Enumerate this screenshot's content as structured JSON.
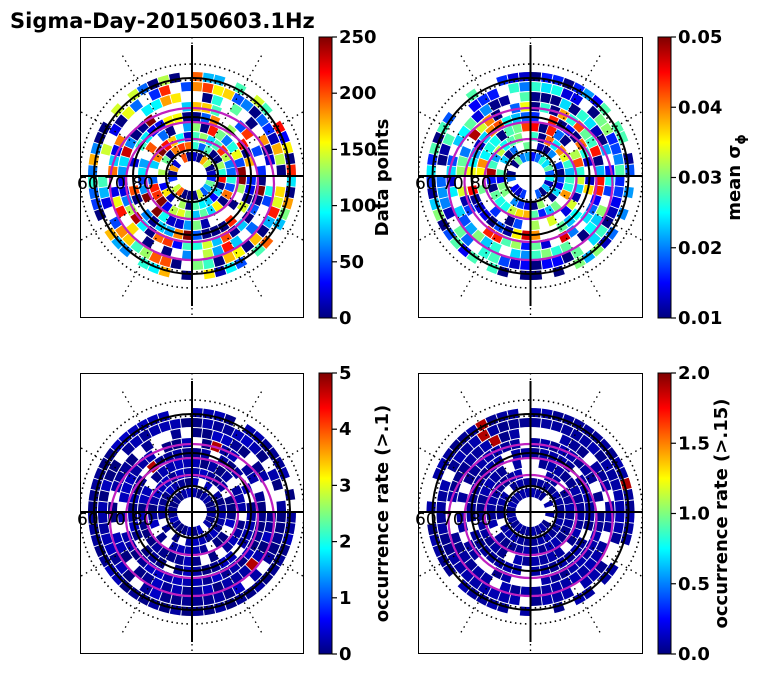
{
  "figure": {
    "title": "Sigma-Day-20150603.1Hz"
  },
  "chart_data": [
    {
      "type": "heatmap",
      "projection": "polar",
      "ring_labels": [
        "60",
        "70",
        "80"
      ],
      "colorbar": {
        "label": "Data points",
        "min": 0,
        "max": 250,
        "ticks": [
          0,
          50,
          100,
          150,
          200,
          250
        ],
        "colormap": "jet"
      }
    },
    {
      "type": "heatmap",
      "projection": "polar",
      "ring_labels": [
        "60",
        "70",
        "80"
      ],
      "colorbar": {
        "label": "mean σ",
        "label_subscript": "ϕ",
        "min": 0.01,
        "max": 0.05,
        "ticks": [
          "0.01",
          "0.02",
          "0.03",
          "0.04",
          "0.05"
        ],
        "colormap": "jet"
      }
    },
    {
      "type": "heatmap",
      "projection": "polar",
      "ring_labels": [
        "60",
        "70",
        "80"
      ],
      "colorbar": {
        "label": "occurrence rate (>.1)",
        "min": 0,
        "max": 5,
        "ticks": [
          0,
          1,
          2,
          3,
          4,
          5
        ],
        "colormap": "jet"
      }
    },
    {
      "type": "heatmap",
      "projection": "polar",
      "ring_labels": [
        "60",
        "70",
        "80"
      ],
      "colorbar": {
        "label": "occurrence rate (>.15)",
        "min": 0,
        "max": 2,
        "ticks": [
          "0.0",
          "0.5",
          "1.0",
          "1.5",
          "2.0"
        ],
        "colormap": "jet"
      }
    }
  ],
  "colors": {
    "oval": "#c020c0",
    "grid": "#000000",
    "colormap": "jet"
  }
}
